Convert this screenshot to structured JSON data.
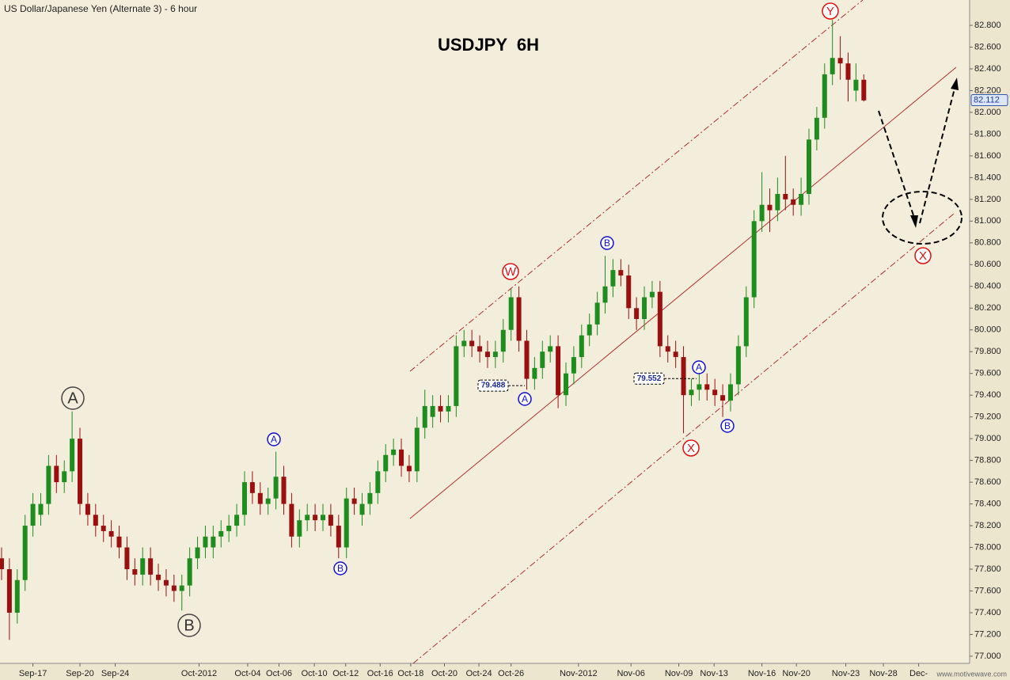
{
  "chart_data": {
    "type": "candlestick",
    "header": "US Dollar/Japanese Yen (Alternate 3) - 6 hour",
    "title": "USDJPY  6H",
    "watermark": "www.motivewave.com",
    "up_color": "#1e8c1e",
    "down_color": "#9a1010",
    "candles": [
      [
        77.9,
        78.0,
        77.7,
        77.8
      ],
      [
        77.8,
        77.9,
        77.15,
        77.4
      ],
      [
        77.4,
        77.8,
        77.3,
        77.7
      ],
      [
        77.7,
        78.3,
        77.6,
        78.2
      ],
      [
        78.2,
        78.5,
        78.1,
        78.4
      ],
      [
        78.3,
        78.5,
        78.2,
        78.4
      ],
      [
        78.4,
        78.85,
        78.3,
        78.75
      ],
      [
        78.75,
        78.85,
        78.5,
        78.6
      ],
      [
        78.6,
        78.8,
        78.5,
        78.7
      ],
      [
        78.7,
        79.25,
        78.6,
        79.0
      ],
      [
        79.0,
        79.1,
        78.3,
        78.4
      ],
      [
        78.4,
        78.5,
        78.2,
        78.3
      ],
      [
        78.3,
        78.4,
        78.1,
        78.2
      ],
      [
        78.2,
        78.3,
        78.05,
        78.15
      ],
      [
        78.15,
        78.25,
        78.0,
        78.1
      ],
      [
        78.1,
        78.2,
        77.9,
        78.0
      ],
      [
        78.0,
        78.1,
        77.7,
        77.8
      ],
      [
        77.8,
        77.9,
        77.65,
        77.75
      ],
      [
        77.75,
        78.0,
        77.65,
        77.9
      ],
      [
        77.9,
        78.0,
        77.65,
        77.75
      ],
      [
        77.75,
        77.85,
        77.6,
        77.7
      ],
      [
        77.7,
        77.8,
        77.55,
        77.65
      ],
      [
        77.65,
        77.75,
        77.5,
        77.6
      ],
      [
        77.6,
        77.75,
        77.42,
        77.65
      ],
      [
        77.65,
        78.0,
        77.55,
        77.9
      ],
      [
        77.9,
        78.1,
        77.8,
        78.0
      ],
      [
        78.0,
        78.2,
        77.9,
        78.1
      ],
      [
        78.0,
        78.2,
        77.9,
        78.1
      ],
      [
        78.1,
        78.25,
        78.0,
        78.15
      ],
      [
        78.15,
        78.3,
        78.05,
        78.2
      ],
      [
        78.2,
        78.4,
        78.1,
        78.3
      ],
      [
        78.3,
        78.7,
        78.2,
        78.6
      ],
      [
        78.6,
        78.7,
        78.4,
        78.5
      ],
      [
        78.5,
        78.6,
        78.3,
        78.4
      ],
      [
        78.4,
        78.55,
        78.3,
        78.45
      ],
      [
        78.45,
        78.88,
        78.35,
        78.65
      ],
      [
        78.65,
        78.75,
        78.3,
        78.4
      ],
      [
        78.4,
        78.5,
        78.0,
        78.1
      ],
      [
        78.1,
        78.35,
        78.0,
        78.25
      ],
      [
        78.25,
        78.4,
        78.15,
        78.3
      ],
      [
        78.3,
        78.4,
        78.15,
        78.25
      ],
      [
        78.25,
        78.4,
        78.15,
        78.3
      ],
      [
        78.3,
        78.4,
        78.1,
        78.2
      ],
      [
        78.2,
        78.3,
        77.9,
        78.0
      ],
      [
        78.0,
        78.55,
        77.9,
        78.45
      ],
      [
        78.45,
        78.55,
        78.3,
        78.4
      ],
      [
        78.3,
        78.5,
        78.2,
        78.4
      ],
      [
        78.4,
        78.6,
        78.3,
        78.5
      ],
      [
        78.5,
        78.8,
        78.4,
        78.7
      ],
      [
        78.7,
        78.95,
        78.6,
        78.85
      ],
      [
        78.85,
        79.0,
        78.75,
        78.9
      ],
      [
        78.9,
        79.0,
        78.65,
        78.75
      ],
      [
        78.75,
        78.85,
        78.6,
        78.7
      ],
      [
        78.7,
        79.2,
        78.6,
        79.1
      ],
      [
        79.1,
        79.45,
        79.0,
        79.3
      ],
      [
        79.2,
        79.4,
        79.1,
        79.3
      ],
      [
        79.3,
        79.4,
        79.15,
        79.25
      ],
      [
        79.25,
        79.4,
        79.15,
        79.3
      ],
      [
        79.3,
        79.95,
        79.2,
        79.85
      ],
      [
        79.85,
        80.0,
        79.75,
        79.9
      ],
      [
        79.9,
        80.0,
        79.75,
        79.85
      ],
      [
        79.85,
        79.95,
        79.7,
        79.8
      ],
      [
        79.8,
        79.9,
        79.65,
        79.75
      ],
      [
        79.75,
        79.9,
        79.65,
        79.8
      ],
      [
        79.8,
        80.1,
        79.7,
        80.0
      ],
      [
        80.0,
        80.38,
        79.9,
        80.3
      ],
      [
        80.3,
        80.4,
        79.8,
        79.9
      ],
      [
        79.9,
        80.0,
        79.45,
        79.55
      ],
      [
        79.55,
        79.75,
        79.45,
        79.65
      ],
      [
        79.65,
        79.9,
        79.55,
        79.8
      ],
      [
        79.8,
        79.95,
        79.7,
        79.85
      ],
      [
        79.85,
        79.95,
        79.28,
        79.4
      ],
      [
        79.4,
        79.7,
        79.3,
        79.6
      ],
      [
        79.6,
        79.85,
        79.5,
        79.75
      ],
      [
        79.75,
        80.05,
        79.65,
        79.95
      ],
      [
        79.95,
        80.15,
        79.85,
        80.05
      ],
      [
        80.05,
        80.35,
        79.95,
        80.25
      ],
      [
        80.25,
        80.68,
        80.15,
        80.4
      ],
      [
        80.4,
        80.65,
        80.3,
        80.55
      ],
      [
        80.55,
        80.65,
        80.4,
        80.5
      ],
      [
        80.5,
        80.6,
        80.1,
        80.2
      ],
      [
        80.2,
        80.3,
        80.0,
        80.1
      ],
      [
        80.1,
        80.4,
        80.0,
        80.3
      ],
      [
        80.3,
        80.45,
        80.2,
        80.35
      ],
      [
        80.35,
        80.45,
        79.75,
        79.85
      ],
      [
        79.85,
        79.95,
        79.7,
        79.8
      ],
      [
        79.8,
        79.9,
        79.65,
        79.75
      ],
      [
        79.75,
        79.85,
        79.05,
        79.4
      ],
      [
        79.4,
        79.55,
        79.3,
        79.45
      ],
      [
        79.45,
        79.6,
        79.35,
        79.5
      ],
      [
        79.5,
        79.6,
        79.35,
        79.45
      ],
      [
        79.45,
        79.55,
        79.3,
        79.4
      ],
      [
        79.4,
        79.5,
        79.2,
        79.35
      ],
      [
        79.35,
        79.6,
        79.25,
        79.5
      ],
      [
        79.5,
        79.95,
        79.4,
        79.85
      ],
      [
        79.85,
        80.4,
        79.75,
        80.3
      ],
      [
        80.3,
        81.1,
        80.2,
        81.0
      ],
      [
        81.0,
        81.45,
        80.9,
        81.15
      ],
      [
        81.15,
        81.3,
        80.9,
        81.1
      ],
      [
        81.1,
        81.4,
        81.0,
        81.25
      ],
      [
        81.25,
        81.6,
        81.1,
        81.2
      ],
      [
        81.2,
        81.3,
        81.05,
        81.15
      ],
      [
        81.15,
        81.4,
        81.05,
        81.25
      ],
      [
        81.25,
        81.85,
        81.15,
        81.75
      ],
      [
        81.75,
        82.05,
        81.65,
        81.95
      ],
      [
        81.95,
        82.45,
        81.85,
        82.35
      ],
      [
        82.35,
        82.85,
        82.25,
        82.5
      ],
      [
        82.5,
        82.7,
        82.3,
        82.45
      ],
      [
        82.45,
        82.55,
        82.1,
        82.3
      ],
      [
        82.2,
        82.45,
        82.1,
        82.3
      ],
      [
        82.3,
        82.35,
        82.1,
        82.11
      ]
    ],
    "xlim": [
      -0.2,
      123.5
    ],
    "xticks": [
      {
        "value": 4,
        "label": "Sep-17"
      },
      {
        "value": 10,
        "label": "Sep-20"
      },
      {
        "value": 14.5,
        "label": "Sep-24"
      },
      {
        "value": 25.2,
        "label": "Oct-2012"
      },
      {
        "value": 31.4,
        "label": "Oct-04"
      },
      {
        "value": 35.4,
        "label": "Oct-06"
      },
      {
        "value": 39.9,
        "label": "Oct-10"
      },
      {
        "value": 43.9,
        "label": "Oct-12"
      },
      {
        "value": 48.3,
        "label": "Oct-16"
      },
      {
        "value": 52.2,
        "label": "Oct-18"
      },
      {
        "value": 56.5,
        "label": "Oct-20"
      },
      {
        "value": 60.9,
        "label": "Oct-24"
      },
      {
        "value": 65,
        "label": "Oct-26"
      },
      {
        "value": 73.6,
        "label": "Nov-2012"
      },
      {
        "value": 80.3,
        "label": "Nov-06"
      },
      {
        "value": 86.4,
        "label": "Nov-09"
      },
      {
        "value": 90.9,
        "label": "Nov-13"
      },
      {
        "value": 97,
        "label": "Nov-16"
      },
      {
        "value": 101.4,
        "label": "Nov-20"
      },
      {
        "value": 107.7,
        "label": "Nov-23"
      },
      {
        "value": 112.5,
        "label": "Nov-28"
      },
      {
        "value": 117,
        "label": "Dec-"
      }
    ],
    "ylim": [
      76.934,
      83.033
    ],
    "yticks": [
      {
        "value": 77,
        "label": "77.000"
      },
      {
        "value": 77.2,
        "label": "77.200"
      },
      {
        "value": 77.4,
        "label": "77.400"
      },
      {
        "value": 77.6,
        "label": "77.600"
      },
      {
        "value": 77.8,
        "label": "77.800"
      },
      {
        "value": 78,
        "label": "78.000"
      },
      {
        "value": 78.2,
        "label": "78.200"
      },
      {
        "value": 78.4,
        "label": "78.400"
      },
      {
        "value": 78.6,
        "label": "78.600"
      },
      {
        "value": 78.8,
        "label": "78.800"
      },
      {
        "value": 79,
        "label": "79.000"
      },
      {
        "value": 79.2,
        "label": "79.200"
      },
      {
        "value": 79.4,
        "label": "79.400"
      },
      {
        "value": 79.6,
        "label": "79.600"
      },
      {
        "value": 79.8,
        "label": "79.800"
      },
      {
        "value": 80,
        "label": "80.000"
      },
      {
        "value": 80.2,
        "label": "80.200"
      },
      {
        "value": 80.4,
        "label": "80.400"
      },
      {
        "value": 80.6,
        "label": "80.600"
      },
      {
        "value": 80.8,
        "label": "80.800"
      },
      {
        "value": 81,
        "label": "81.000"
      },
      {
        "value": 81.2,
        "label": "81.200"
      },
      {
        "value": 81.4,
        "label": "81.400"
      },
      {
        "value": 81.6,
        "label": "81.600"
      },
      {
        "value": 81.8,
        "label": "81.800"
      },
      {
        "value": 82,
        "label": "82.000"
      },
      {
        "value": 82.2,
        "label": "82.200"
      },
      {
        "value": 82.4,
        "label": "82.400"
      },
      {
        "value": 82.6,
        "label": "82.600"
      },
      {
        "value": 82.8,
        "label": "82.800"
      }
    ],
    "last_price": {
      "value": 82.112,
      "label": "82.112"
    },
    "annotations": [
      {
        "text": "A",
        "style": "gray"
      },
      {
        "text": "B",
        "style": "gray"
      },
      {
        "text": "A",
        "style": "blue"
      },
      {
        "text": "B",
        "style": "blue"
      },
      {
        "text": "A",
        "style": "blue"
      },
      {
        "text": "B",
        "style": "blue"
      },
      {
        "text": "A",
        "style": "blue"
      },
      {
        "text": "B",
        "style": "blue"
      },
      {
        "text": "W",
        "style": "red"
      },
      {
        "text": "X",
        "style": "red"
      },
      {
        "text": "Y",
        "style": "red"
      },
      {
        "text": "X",
        "style": "red"
      }
    ],
    "price_boxes": [
      {
        "value": 79.488,
        "label": "79.488"
      },
      {
        "value": 79.552,
        "label": "79.552"
      }
    ]
  }
}
